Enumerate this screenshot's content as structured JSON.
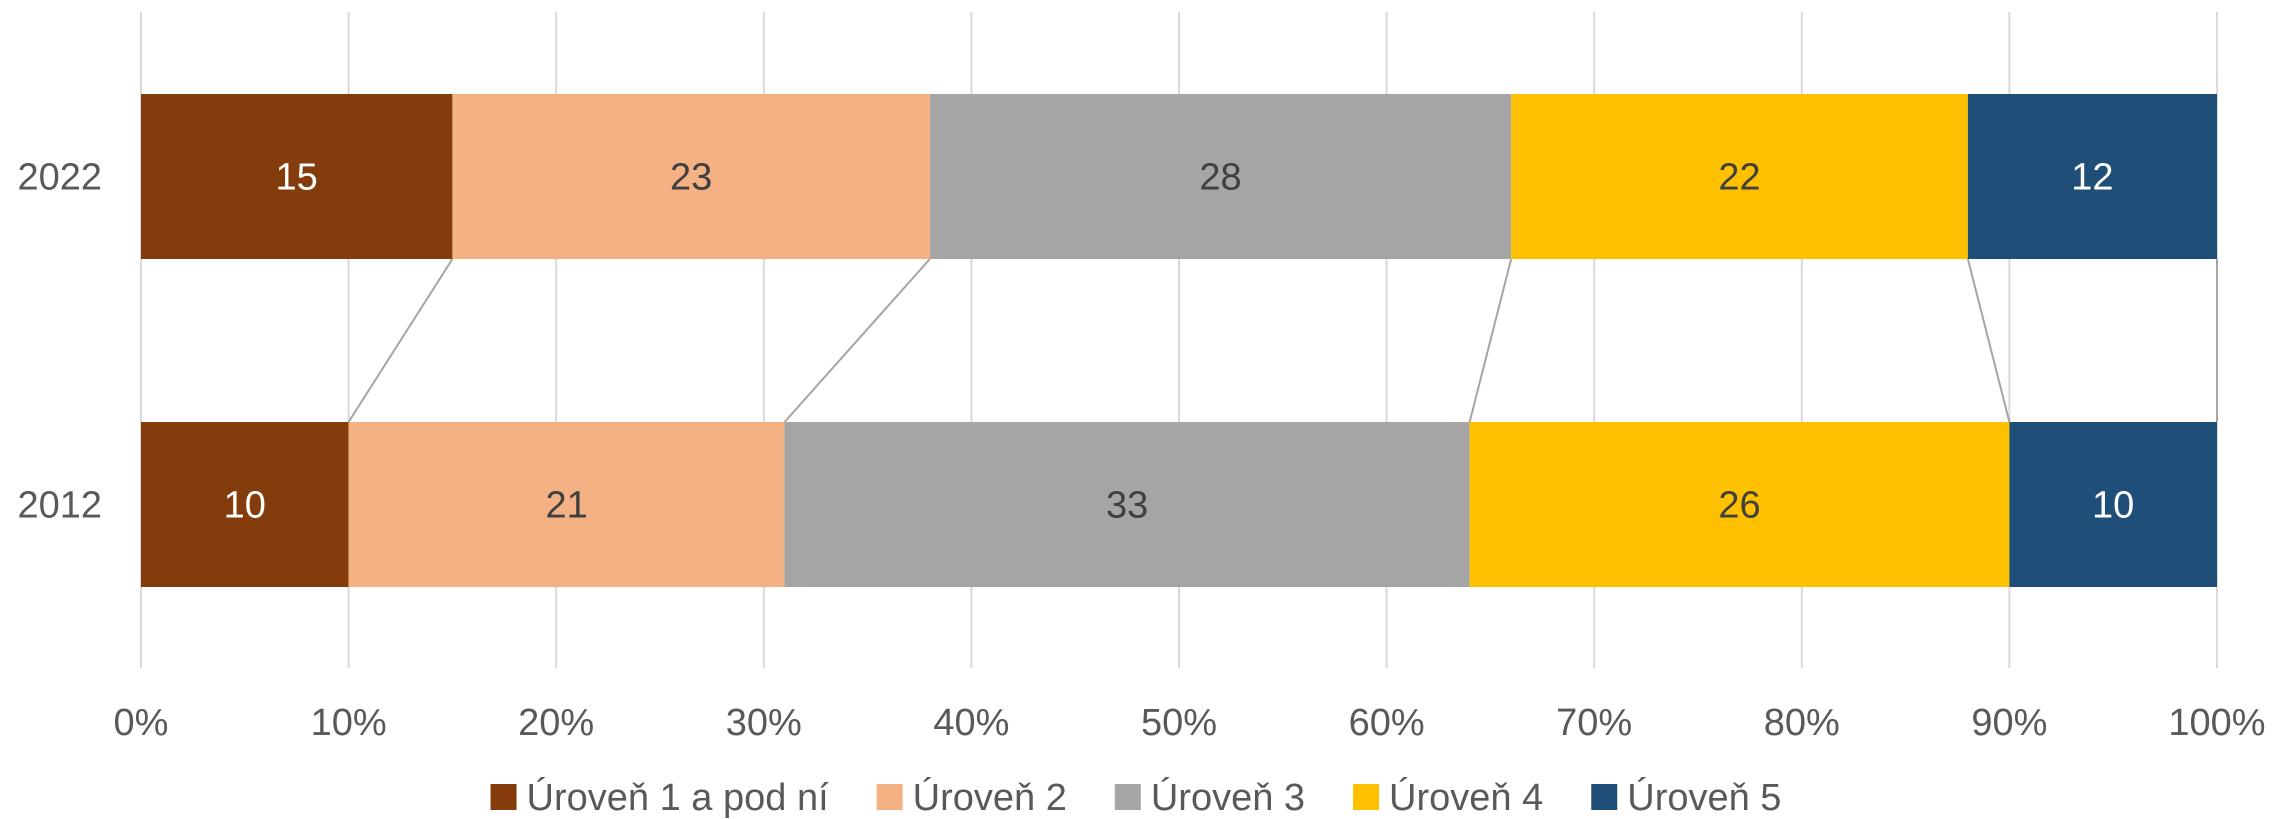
{
  "chart_data": {
    "type": "bar",
    "orientation": "horizontal",
    "stacked": "percent",
    "categories": [
      "2022",
      "2012"
    ],
    "series": [
      {
        "name": "Úroveň 1 a pod ní",
        "values": [
          15,
          10
        ],
        "color": "#843C0C",
        "label_color": "#FFFFFF"
      },
      {
        "name": "Úroveň 2",
        "values": [
          23,
          21
        ],
        "color": "#F4B183",
        "label_color": "#404040"
      },
      {
        "name": "Úroveň 3",
        "values": [
          28,
          33
        ],
        "color": "#A5A5A5",
        "label_color": "#404040"
      },
      {
        "name": "Úroveň 4",
        "values": [
          22,
          26
        ],
        "color": "#FFC000",
        "label_color": "#404040"
      },
      {
        "name": "Úroveň 5",
        "values": [
          12,
          10
        ],
        "color": "#1F4E79",
        "label_color": "#FFFFFF"
      }
    ],
    "xlim": [
      0,
      100
    ],
    "x_ticks": [
      "0%",
      "10%",
      "20%",
      "30%",
      "40%",
      "50%",
      "60%",
      "70%",
      "80%",
      "90%",
      "100%"
    ],
    "series_lines": true,
    "grid": true,
    "legend_position": "bottom"
  }
}
